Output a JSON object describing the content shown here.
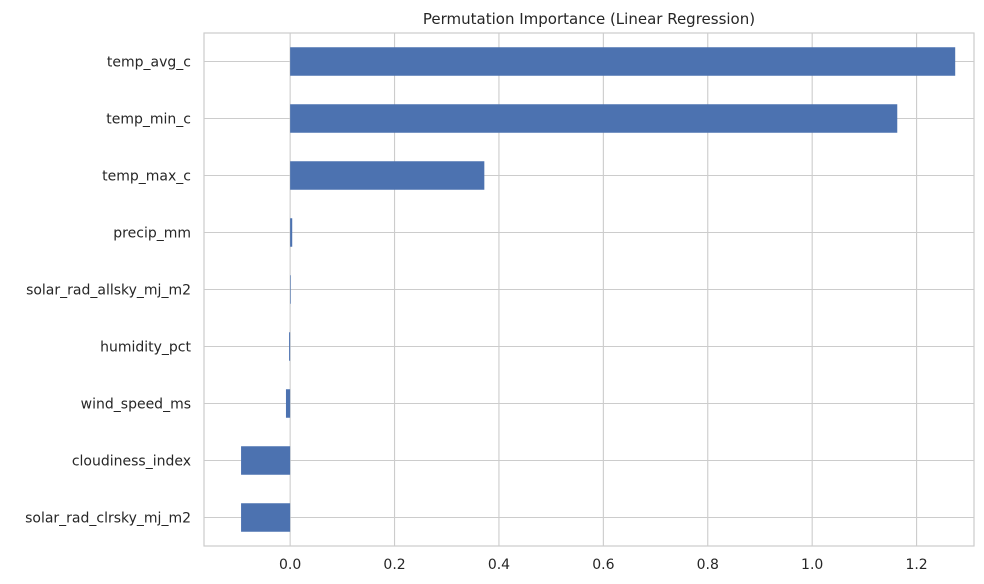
{
  "chart_data": {
    "type": "bar",
    "orientation": "horizontal",
    "title": "Permutation Importance (Linear Regression)",
    "xlabel": "",
    "ylabel": "",
    "categories": [
      "temp_avg_c",
      "temp_min_c",
      "temp_max_c",
      "precip_mm",
      "solar_rad_allsky_mj_m2",
      "humidity_pct",
      "wind_speed_ms",
      "cloudiness_index",
      "solar_rad_clrsky_mj_m2"
    ],
    "values": [
      1.274,
      1.163,
      0.372,
      0.004,
      0.0,
      -0.002,
      -0.008,
      -0.094,
      -0.094
    ],
    "xlim": [
      -0.165,
      1.31
    ],
    "xticks": [
      0.0,
      0.2,
      0.4,
      0.6,
      0.8,
      1.0,
      1.2
    ],
    "xtick_labels": [
      "0.0",
      "0.2",
      "0.4",
      "0.6",
      "0.8",
      "1.0",
      "1.2"
    ],
    "grid": true,
    "bar_color": "#4c72b0",
    "grid_color": "#cccccc",
    "text_color": "#262626"
  }
}
